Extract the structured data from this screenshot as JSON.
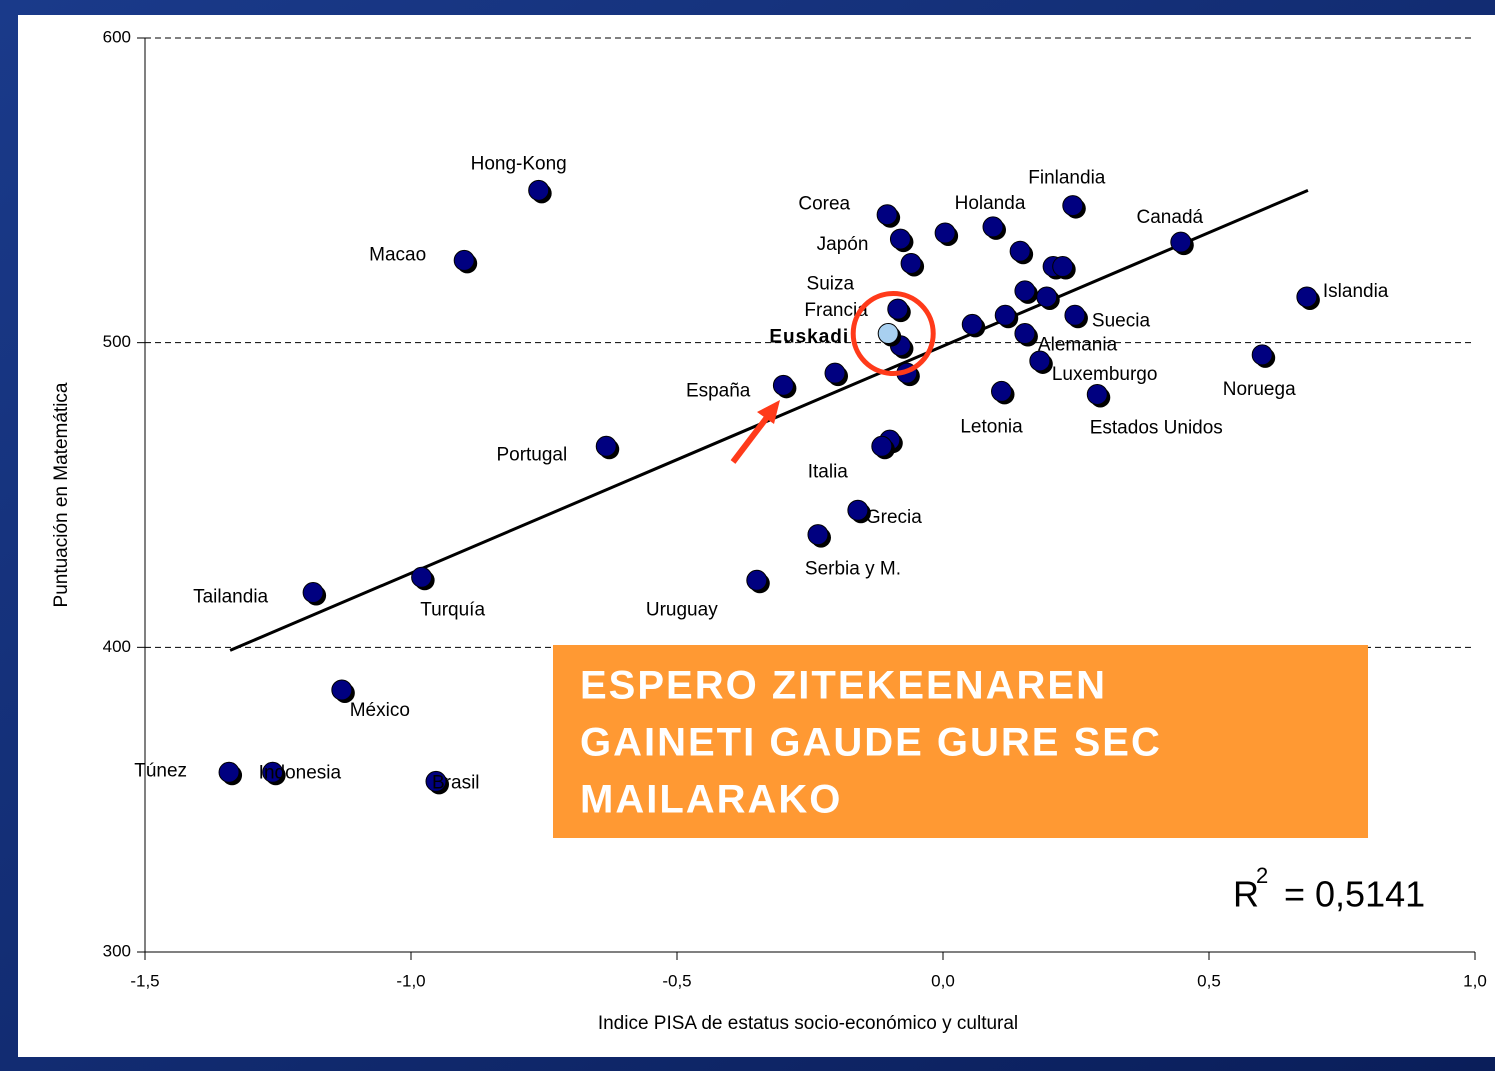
{
  "chart_data": {
    "type": "scatter",
    "x_label": "Indice PISA de estatus socio-económico y cultural",
    "y_label": "Puntuación en Matemática",
    "xlim": [
      -1.5,
      1.0
    ],
    "xticks": [
      {
        "value": -1.5,
        "label": "-1,5"
      },
      {
        "value": -1.0,
        "label": "-1,0"
      },
      {
        "value": -0.5,
        "label": "-0,5"
      },
      {
        "value": 0.0,
        "label": "0,0"
      },
      {
        "value": 0.5,
        "label": "0,5"
      },
      {
        "value": 1.0,
        "label": "1,0"
      }
    ],
    "ylim": [
      300,
      600
    ],
    "yticks": [
      300,
      400,
      500,
      600
    ],
    "grid": true,
    "color": "#000080",
    "points": [
      {
        "label": "Hong-Kong",
        "x": -0.76,
        "y": 550
      },
      {
        "label": "Macao",
        "x": -0.9,
        "y": 527
      },
      {
        "label": "Corea",
        "x": -0.105,
        "y": 542
      },
      {
        "label": "Japón",
        "x": -0.08,
        "y": 534
      },
      {
        "label": "Suiza",
        "x": -0.06,
        "y": 526
      },
      {
        "label": "Holanda",
        "x": 0.094,
        "y": 538
      },
      {
        "x": 0.004,
        "y": 536
      },
      {
        "label": "Finlandia",
        "x": 0.244,
        "y": 545
      },
      {
        "label": "Canadá",
        "x": 0.447,
        "y": 533
      },
      {
        "x": 0.145,
        "y": 530
      },
      {
        "x": 0.207,
        "y": 525
      },
      {
        "x": 0.225,
        "y": 525
      },
      {
        "x": 0.154,
        "y": 517
      },
      {
        "x": 0.195,
        "y": 515
      },
      {
        "label": "Islandia",
        "x": 0.684,
        "y": 515
      },
      {
        "label": "Francia",
        "x": -0.085,
        "y": 511
      },
      {
        "label": "Suecia",
        "x": 0.248,
        "y": 509
      },
      {
        "x": 0.117,
        "y": 509
      },
      {
        "x": 0.055,
        "y": 506
      },
      {
        "x": -0.08,
        "y": 499
      },
      {
        "label": "Alemania",
        "x": 0.154,
        "y": 503
      },
      {
        "label": "Luxemburgo",
        "x": 0.182,
        "y": 494
      },
      {
        "label": "Noruega",
        "x": 0.6,
        "y": 496
      },
      {
        "x": -0.068,
        "y": 490
      },
      {
        "x": -0.203,
        "y": 490
      },
      {
        "label": "España",
        "x": -0.3,
        "y": 486
      },
      {
        "label": "Estados Unidos",
        "x": 0.29,
        "y": 483
      },
      {
        "label": "Letonia",
        "x": 0.11,
        "y": 484
      },
      {
        "x": -0.1,
        "y": 468
      },
      {
        "label": "Italia",
        "x": -0.115,
        "y": 466
      },
      {
        "label": "Portugal",
        "x": -0.633,
        "y": 466
      },
      {
        "label": "Grecia",
        "x": -0.16,
        "y": 445
      },
      {
        "label": "Serbia y M.",
        "x": -0.235,
        "y": 437
      },
      {
        "label": "Uruguay",
        "x": -0.35,
        "y": 422
      },
      {
        "label": "Turquía",
        "x": -0.98,
        "y": 423
      },
      {
        "label": "Tailandia",
        "x": -1.184,
        "y": 418
      },
      {
        "label": "México",
        "x": -1.13,
        "y": 386
      },
      {
        "label": "Túnez",
        "x": -1.342,
        "y": 359
      },
      {
        "label": "Indonesia",
        "x": -1.26,
        "y": 359
      },
      {
        "label": "Brasil",
        "x": -0.953,
        "y": 356
      },
      {
        "label": "Euskadi",
        "x": -0.103,
        "y": 503,
        "color": "#a8d0f0"
      }
    ],
    "trendline": {
      "x": [
        -1.34,
        0.686
      ],
      "y": [
        399,
        550
      ]
    },
    "r2": {
      "base": "R",
      "sup": "2",
      "text": "= 0,5141"
    },
    "callout": [
      "ESPERO ZITEKEENAREN",
      "GAINETI GAUDE GURE SEC",
      "MAILARAKO"
    ]
  }
}
